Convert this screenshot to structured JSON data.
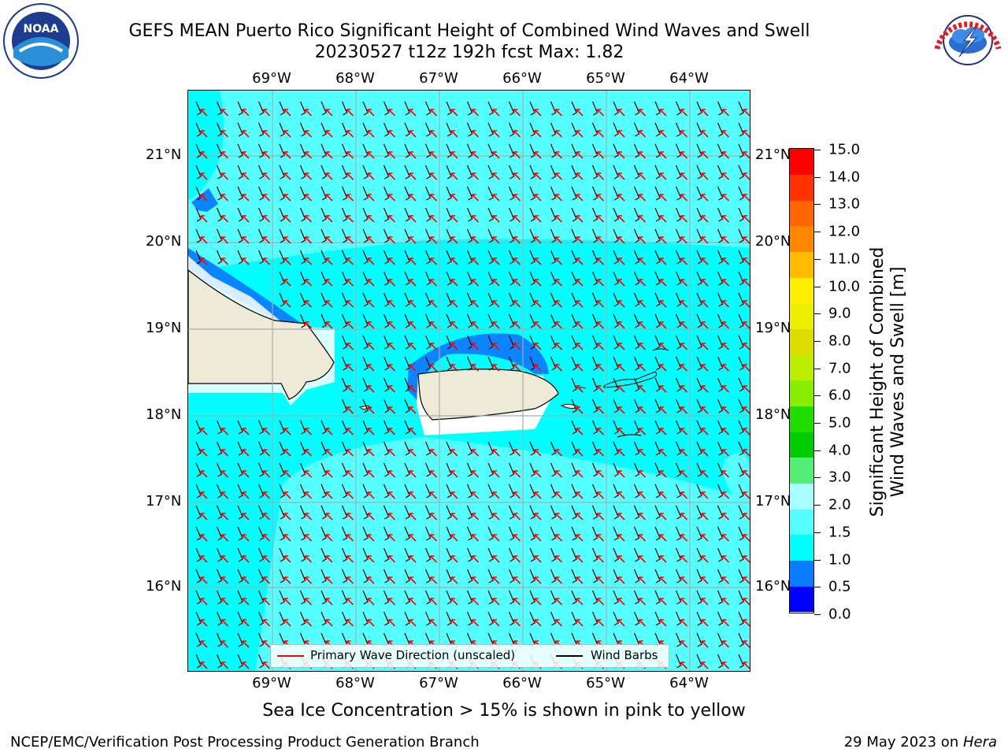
{
  "title": {
    "line1": "GEFS MEAN Puerto Rico Significant Height of Combined Wind Waves and Swell",
    "line2": "20230527 t12z 192h fcst   Max: 1.82"
  },
  "map": {
    "lon_labels": [
      "69°W",
      "68°W",
      "67°W",
      "66°W",
      "65°W",
      "64°W"
    ],
    "lat_labels": [
      "21°N",
      "20°N",
      "19°N",
      "18°N",
      "17°N",
      "16°N"
    ],
    "colors": {
      "land": "#eeead8",
      "sea_light": "#55ffff",
      "sea_mid": "#00ffff",
      "sea_deep": "#0a84ff",
      "sea_darker": "#0000ff",
      "wave_arrow": "#ff0000",
      "wind_barb": "#000000"
    }
  },
  "legend": {
    "wave_label": "Primary Wave Direction (unscaled)",
    "wind_label": "Wind Barbs"
  },
  "colorbar": {
    "label_line1": "Significant Height of Combined",
    "label_line2": "Wind Waves and Swell [m]",
    "ticks": [
      "15.0",
      "14.0",
      "13.0",
      "12.0",
      "11.0",
      "10.0",
      "9.0",
      "8.0",
      "7.0",
      "6.0",
      "5.0",
      "4.0",
      "3.0",
      "2.0",
      "1.5",
      "1.0",
      "0.5",
      "0.0"
    ],
    "colors": [
      "#0000ff",
      "#0a7dff",
      "#00ffff",
      "#55ffff",
      "#aaffff",
      "#55ee77",
      "#00cc00",
      "#22dd00",
      "#88ee00",
      "#bbee00",
      "#dddd00",
      "#eeee00",
      "#ffee00",
      "#ffbb00",
      "#ff8800",
      "#ff6600",
      "#ff3300",
      "#ff0000"
    ]
  },
  "logos": {
    "noaa_text": "NOAA",
    "nws_text": "NATIONAL WEATHER SERVICE"
  },
  "footer": {
    "ice_note": "Sea Ice Concentration > 15% is shown in pink to yellow",
    "credit": "NCEP/EMC/Verification Post Processing Product Generation Branch",
    "date_prefix": "29 May 2023 on ",
    "date_host": "Hera"
  }
}
